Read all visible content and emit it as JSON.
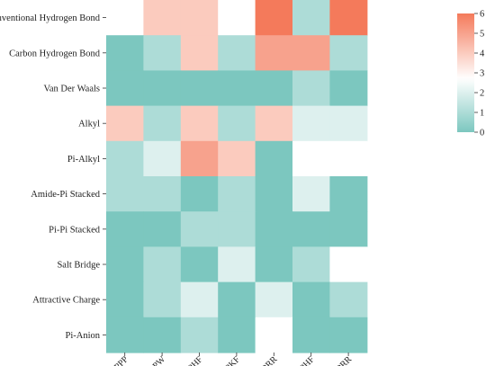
{
  "chart_data": {
    "type": "heatmap",
    "title": "",
    "xlabel": "",
    "ylabel": "",
    "rows": [
      "Conventional Hydrogen Bond",
      "Carbon Hydrogen Bond",
      "Van Der Waals",
      "Alkyl",
      "Pi-Alkyl",
      "Amide-Pi Stacked",
      "Pi-Pi Stacked",
      "Salt Bridge",
      "Attractive Charge",
      "Pi-Anion"
    ],
    "columns": [
      "FPPP",
      "GGPW",
      "IPHF",
      "IPKF",
      "IPRR",
      "LPHF",
      "LPRR"
    ],
    "values": [
      [
        null,
        4,
        4,
        null,
        6,
        1,
        6
      ],
      [
        0,
        1,
        4,
        1,
        5,
        5,
        1
      ],
      [
        0,
        0,
        0,
        0,
        0,
        1,
        0
      ],
      [
        4,
        1,
        4,
        1,
        4,
        2,
        2
      ],
      [
        1,
        2,
        5,
        4,
        0,
        null,
        null
      ],
      [
        1,
        1,
        0,
        1,
        0,
        2,
        0
      ],
      [
        0,
        0,
        1,
        1,
        0,
        0,
        0
      ],
      [
        0,
        1,
        0,
        2,
        0,
        1,
        null
      ],
      [
        0,
        1,
        2,
        0,
        2,
        0,
        1
      ],
      [
        0,
        0,
        1,
        0,
        null,
        0,
        0
      ]
    ],
    "colorbar": {
      "min": 0,
      "max": 6,
      "ticks": [
        "0",
        "1",
        "2",
        "3",
        "4",
        "5",
        "6"
      ],
      "colors": {
        "low": "#7cc7bf",
        "mid": "#ffffff",
        "high": "#f47a5b"
      }
    },
    "empty_cell_color": "#ffffff"
  }
}
